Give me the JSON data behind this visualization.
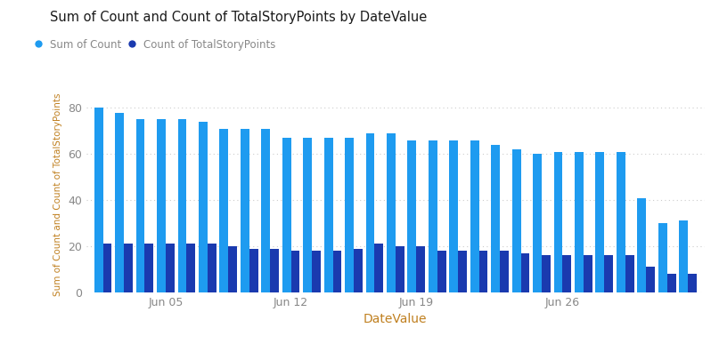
{
  "title": "Sum of Count and Count of TotalStoryPoints by DateValue",
  "xlabel": "DateValue",
  "ylabel": "Sum of Count and Count of TotalStoryPoints",
  "legend_labels": [
    "Sum of Count",
    "Count of TotalStoryPoints"
  ],
  "bar_color_1": "#1E9BF0",
  "bar_color_2": "#1A3AAF",
  "background_color": "#FFFFFF",
  "grid_color": "#CCCCCC",
  "title_color": "#1a1a1a",
  "axis_label_color": "#C08020",
  "tick_label_color": "#888888",
  "legend_dot_color_1": "#1E9BF0",
  "legend_dot_color_2": "#1A3AAF",
  "sum_of_count": [
    80,
    78,
    75,
    75,
    75,
    74,
    71,
    71,
    71,
    67,
    67,
    67,
    67,
    69,
    69,
    66,
    66,
    66,
    66,
    64,
    62,
    60,
    61,
    61,
    61,
    61,
    41,
    30,
    31
  ],
  "count_of_tsp": [
    21,
    21,
    21,
    21,
    21,
    21,
    20,
    19,
    19,
    18,
    18,
    18,
    19,
    21,
    20,
    20,
    18,
    18,
    18,
    18,
    17,
    16,
    16,
    16,
    16,
    16,
    11,
    8,
    8
  ],
  "xtick_positions": [
    3,
    9,
    15,
    22
  ],
  "xtick_labels": [
    "Jun 05",
    "Jun 12",
    "Jun 19",
    "Jun 26"
  ],
  "ylim": [
    0,
    85
  ],
  "yticks": [
    0,
    20,
    40,
    60,
    80
  ]
}
